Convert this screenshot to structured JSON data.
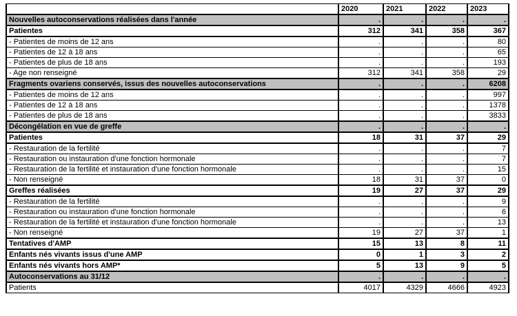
{
  "colors": {
    "section_bg": "#C0C0C0",
    "border": "#000000",
    "page_bg": "#FFFFFF"
  },
  "table": {
    "corner_label": "",
    "columns": [
      "2020",
      "2021",
      "2022",
      "2023"
    ],
    "rows": [
      {
        "type": "section",
        "label": "Nouvelles autoconservations réalisées dans l'année",
        "values": [
          ".",
          ".",
          ".",
          "."
        ]
      },
      {
        "type": "bold",
        "label": "Patientes",
        "values": [
          "312",
          "341",
          "358",
          "367"
        ]
      },
      {
        "type": "normal",
        "label": "- Patientes de moins de 12 ans",
        "values": [
          ".",
          ".",
          ".",
          "80"
        ]
      },
      {
        "type": "normal",
        "label": "- Patientes de 12 à 18 ans",
        "values": [
          ".",
          ".",
          ".",
          "65"
        ]
      },
      {
        "type": "normal",
        "label": "- Patientes de plus de 18 ans",
        "values": [
          ".",
          ".",
          ".",
          "193"
        ]
      },
      {
        "type": "normal",
        "label": "- Age non renseigné",
        "values": [
          "312",
          "341",
          "358",
          "29"
        ]
      },
      {
        "type": "section",
        "label": "Fragments ovariens conservés, issus des nouvelles autoconservations",
        "values": [
          ".",
          ".",
          ".",
          "6208"
        ]
      },
      {
        "type": "normal",
        "label": "- Patientes de moins de 12 ans",
        "values": [
          ".",
          ".",
          ".",
          "997"
        ]
      },
      {
        "type": "normal",
        "label": "- Patientes de 12 à 18 ans",
        "values": [
          ".",
          ".",
          ".",
          "1378"
        ]
      },
      {
        "type": "normal",
        "label": "- Patientes de plus de 18 ans",
        "values": [
          ".",
          ".",
          ".",
          "3833"
        ]
      },
      {
        "type": "section",
        "label": "Décongélation en vue de greffe",
        "values": [
          ".",
          ".",
          ".",
          "."
        ]
      },
      {
        "type": "bold",
        "label": "Patientes",
        "values": [
          "18",
          "31",
          "37",
          "29"
        ]
      },
      {
        "type": "normal",
        "label": "- Restauration de la fertilité",
        "values": [
          ".",
          ".",
          ".",
          "7"
        ]
      },
      {
        "type": "normal",
        "label": "- Restauration ou instauration d'une fonction hormonale",
        "values": [
          ".",
          ".",
          ".",
          "7"
        ]
      },
      {
        "type": "normal",
        "label": "- Restauration de la fertilité et instauration d'une fonction hormonale",
        "values": [
          ".",
          ".",
          ".",
          "15"
        ]
      },
      {
        "type": "normal",
        "label": "- Non renseigné",
        "values": [
          "18",
          "31",
          "37",
          "0"
        ]
      },
      {
        "type": "bold",
        "label": "Greffes réalisées",
        "values": [
          "19",
          "27",
          "37",
          "29"
        ]
      },
      {
        "type": "normal",
        "label": "- Restauration de la fertilité",
        "values": [
          ".",
          ".",
          ".",
          "9"
        ]
      },
      {
        "type": "normal",
        "label": "- Restauration ou instauration d'une fonction hormonale",
        "values": [
          ".",
          ".",
          ".",
          "6"
        ]
      },
      {
        "type": "normal",
        "label": "- Restauration de la fertilité et instauration d'une fonction hormonale",
        "values": [
          ".",
          ".",
          ".",
          "13"
        ]
      },
      {
        "type": "normal",
        "label": "- Non renseigné",
        "values": [
          "19",
          "27",
          "37",
          "1"
        ]
      },
      {
        "type": "bold",
        "label": "Tentatives d'AMP",
        "values": [
          "15",
          "13",
          "8",
          "11"
        ]
      },
      {
        "type": "bold",
        "label": "Enfants nés vivants issus d'une AMP",
        "values": [
          "0",
          "1",
          "3",
          "2"
        ]
      },
      {
        "type": "bold",
        "label": "Enfants nés vivants hors AMP*",
        "values": [
          "5",
          "13",
          "9",
          "5"
        ]
      },
      {
        "type": "section",
        "label": "Autoconservations au 31/12",
        "values": [
          ".",
          ".",
          ".",
          "."
        ]
      },
      {
        "type": "normal",
        "label": "Patients",
        "values": [
          "4017",
          "4329",
          "4666",
          "4923"
        ]
      }
    ]
  }
}
